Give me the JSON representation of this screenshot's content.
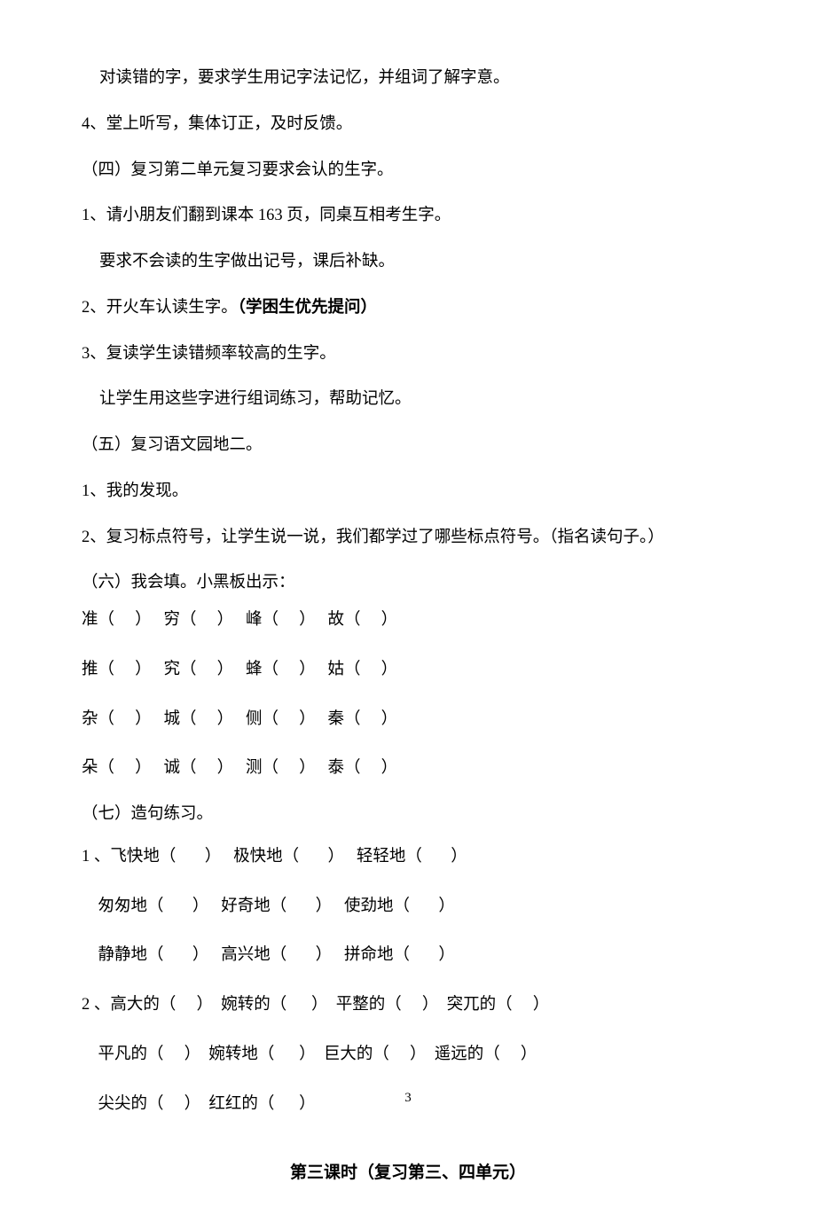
{
  "lines": {
    "l1": "对读错的字，要求学生用记字法记忆，并组词了解字意。",
    "l2": "4、堂上听写，集体订正，及时反馈。",
    "l3": "（四）复习第二单元复习要求会认的生字。",
    "l4": "1、请小朋友们翻到课本 163 页，同桌互相考生字。",
    "l5": "要求不会读的生字做出记号，课后补缺。",
    "l6_pre": "2、开火车认读生字。",
    "l6_bold": "（学困生优先提问）",
    "l7": "3、复读学生读错频率较高的生字。",
    "l8": "让学生用这些字进行组词练习，帮助记忆。",
    "l9": "（五）复习语文园地二。",
    "l10": "1、我的发现。",
    "l11": "2、复习标点符号，让学生说一说，我们都学过了哪些标点符号。（指名读句子。）",
    "l12": "（六）我会填。小黑板出示：",
    "l17": "（七）造句练习。"
  },
  "fill_table": {
    "rows": [
      [
        "准（     ）",
        "穷（     ）",
        "峰（     ）",
        "故（     ）"
      ],
      [
        "推（     ）",
        "究（     ）",
        "蜂（     ）",
        "姑（     ）"
      ],
      [
        "杂（     ）",
        "城（     ）",
        "侧（     ）",
        "秦（     ）"
      ],
      [
        "朵（     ）",
        "诚（     ）",
        "测（     ）",
        "泰（     ）"
      ]
    ]
  },
  "sentence_ex": {
    "group1_prefix": "1 、",
    "group1": [
      [
        "飞快地（       ）",
        "极快地（       ）",
        "轻轻地（       ）"
      ],
      [
        "匆匆地（       ）",
        "好奇地（       ）",
        "使劲地（       ）"
      ],
      [
        "静静地（       ）",
        "高兴地（       ）",
        "拼命地（       ）"
      ]
    ],
    "group2_prefix": "2 、",
    "group2": [
      [
        "高大的（     ）",
        "婉转的（      ）",
        "平整的（     ）",
        "突兀的（     ）"
      ],
      [
        "平凡的（     ）",
        "婉转地（      ）",
        "巨大的（     ）",
        "遥远的（     ）"
      ],
      [
        "尖尖的（     ）",
        "红红的（      ）"
      ]
    ]
  },
  "footer_title": "第三课时（复习第三、四单元）",
  "page_number": "3"
}
